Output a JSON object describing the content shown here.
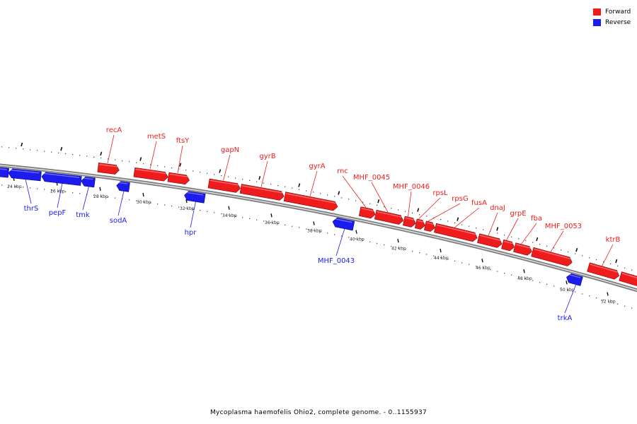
{
  "legend": {
    "forward_label": "Forward",
    "reverse_label": "Reverse",
    "forward_color": "#ee1c1c",
    "reverse_color": "#1c1cee"
  },
  "caption": "Mycoplasma haemofelis Ohio2, complete genome. - 0..1155937",
  "genome": {
    "name": "Mycoplasma haemofelis Ohio2",
    "start": 0,
    "end": 1155937
  },
  "backbone_color": "#808080",
  "ruler_labels": [
    "24 kbp",
    "26 kbp",
    "28 kbp",
    "30 kbp",
    "32 kbp",
    "34 kbp",
    "36 kbp",
    "38 kbp",
    "40 kbp",
    "42 kbp",
    "44 kbp",
    "46 kbp",
    "48 kbp",
    "50 kbp",
    "52 kbp"
  ],
  "genes": [
    {
      "label": "thrS",
      "strand": "reverse"
    },
    {
      "label": "pepF",
      "strand": "reverse"
    },
    {
      "label": "tmk",
      "strand": "reverse"
    },
    {
      "label": "recA",
      "strand": "forward"
    },
    {
      "label": "sodA",
      "strand": "reverse"
    },
    {
      "label": "metS",
      "strand": "forward"
    },
    {
      "label": "ftsY",
      "strand": "forward"
    },
    {
      "label": "hpr",
      "strand": "reverse"
    },
    {
      "label": "gapN",
      "strand": "forward"
    },
    {
      "label": "gyrB",
      "strand": "forward"
    },
    {
      "label": "gyrA",
      "strand": "forward"
    },
    {
      "label": "MHF_0043",
      "strand": "reverse"
    },
    {
      "label": "rnc",
      "strand": "forward"
    },
    {
      "label": "MHF_0045",
      "strand": "forward"
    },
    {
      "label": "MHF_0046",
      "strand": "forward"
    },
    {
      "label": "rpsL",
      "strand": "forward"
    },
    {
      "label": "rpsG",
      "strand": "forward"
    },
    {
      "label": "fusA",
      "strand": "forward"
    },
    {
      "label": "dnaJ",
      "strand": "forward"
    },
    {
      "label": "grpE",
      "strand": "forward"
    },
    {
      "label": "fba",
      "strand": "forward"
    },
    {
      "label": "MHF_0053",
      "strand": "forward"
    },
    {
      "label": "trkA",
      "strand": "reverse"
    },
    {
      "label": "ktrB",
      "strand": "forward"
    }
  ]
}
